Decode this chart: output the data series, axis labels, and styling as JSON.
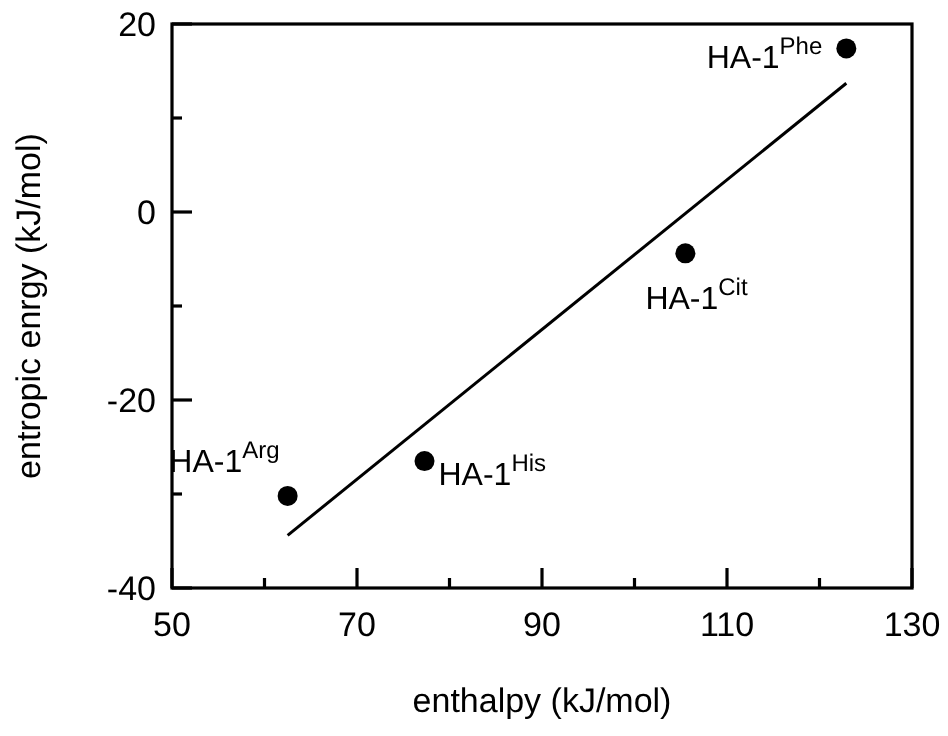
{
  "chart_data": {
    "type": "scatter",
    "xlabel": "enthalpy (kJ/mol)",
    "ylabel": "entropic enrgy (kJ/mol)",
    "xlim": [
      50,
      130
    ],
    "xticks": [
      50,
      {
        "value": 60,
        "label": null
      },
      70,
      {
        "value": 80,
        "label": null
      },
      90,
      {
        "value": 100,
        "label": null
      },
      110,
      {
        "value": 120,
        "label": null
      },
      130
    ],
    "ylim": [
      -40,
      20
    ],
    "yticks": [
      -40,
      {
        "value": -30,
        "label": null
      },
      -20,
      {
        "value": -10,
        "label": null
      },
      0,
      {
        "value": 10,
        "label": null
      },
      20
    ],
    "grid": false,
    "marker": "circle",
    "series": [
      {
        "color": "#000000",
        "x": [
          62.5,
          77.3,
          105.5,
          122.9
        ],
        "values": [
          -30.2,
          -26.5,
          -4.4,
          17.4
        ]
      },
      {
        "type": "line",
        "color": "#000000",
        "marker": "none",
        "line_style": "solid",
        "x": [
          62.5,
          122.9
        ],
        "values": [
          -34.4,
          13.7
        ]
      }
    ],
    "annotations": [
      {
        "text": "HA-1$^{Arg}$",
        "x": 62.5,
        "y": -30.2
      },
      {
        "text": "HA-1$^{His}$",
        "x": 77.3,
        "y": -26.5
      },
      {
        "text": "HA-1$^{Cit}$",
        "x": 105.5,
        "y": -4.4
      },
      {
        "text": "HA-1$^{Phe}$",
        "x": 122.9,
        "y": 17.4
      }
    ]
  }
}
